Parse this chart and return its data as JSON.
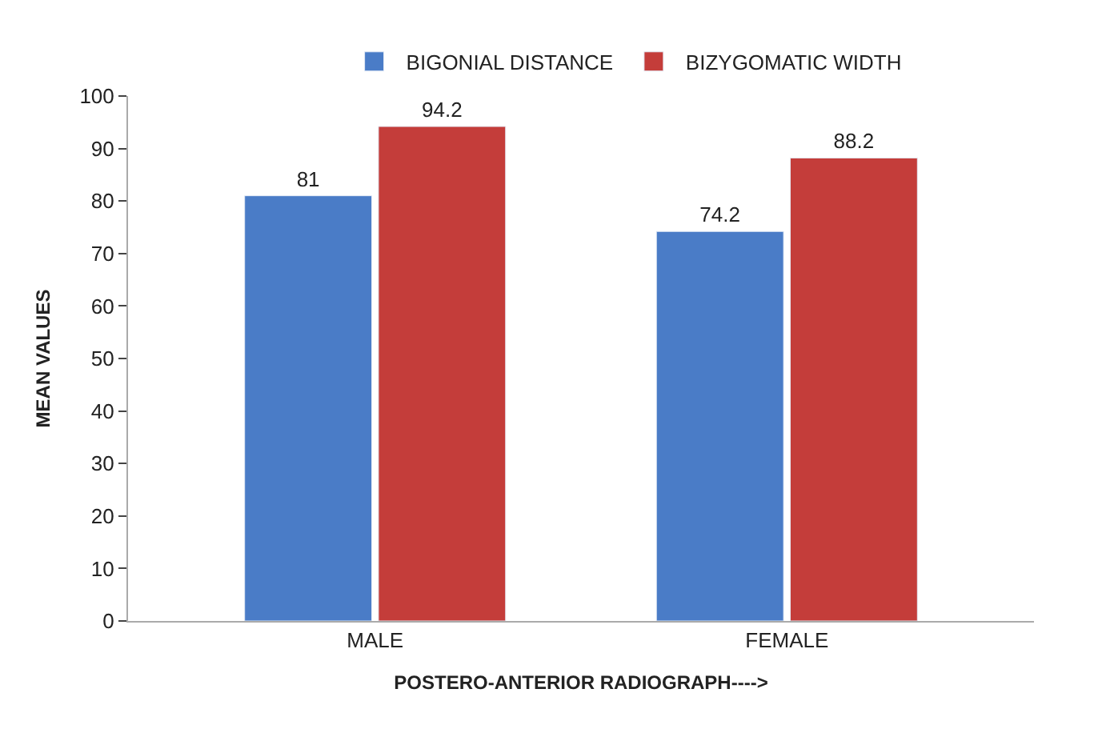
{
  "chart_data": {
    "type": "bar",
    "xlabel": "POSTERO-ANTERIOR RADIOGRAPH---->",
    "ylabel": "MEAN VALUES",
    "categories": [
      "MALE",
      "FEMALE"
    ],
    "series": [
      {
        "name": "BIGONIAL DISTANCE",
        "color": "#4a7cc7",
        "values": [
          81,
          74.2
        ]
      },
      {
        "name": "BIZYGOMATIC WIDTH",
        "color": "#c43d3a",
        "values": [
          94.2,
          88.2
        ]
      }
    ],
    "ylim": [
      0,
      100
    ],
    "yticks": [
      0,
      10,
      20,
      30,
      40,
      50,
      60,
      70,
      80,
      90,
      100
    ],
    "data_labels": true,
    "legend": "top"
  }
}
